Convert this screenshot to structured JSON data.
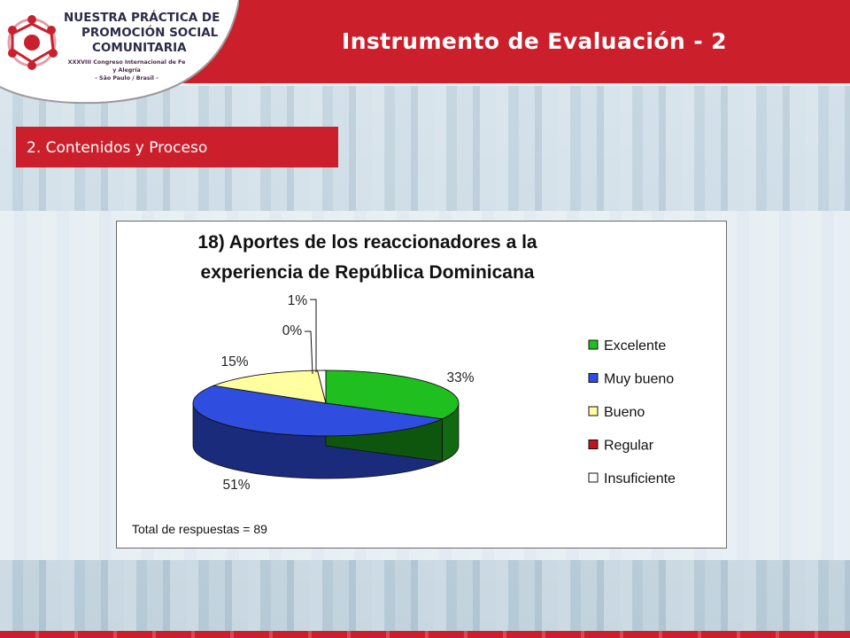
{
  "header": {
    "title": "Instrumento de Evaluación - 2",
    "logo": {
      "line1": "NUESTRA PRÁCTICA DE",
      "line2": "PROMOCIÓN SOCIAL",
      "line3": "COMUNITARIA",
      "subtitle_line1": "XXXVIII Congreso Internacional de Fe y Alegría",
      "subtitle_line2": "- São Paulo / Brasil -"
    }
  },
  "section": {
    "label": "2. Contenidos y Proceso"
  },
  "colors": {
    "brand_red": "#cc1f2c",
    "excelente": "#1fbf1f",
    "muy_bueno": "#2f4ee0",
    "bueno": "#ffffa0",
    "regular": "#c0141e",
    "insuficiente": "#ffffff"
  },
  "chart_data": {
    "type": "pie",
    "title_lines": [
      "18) Aportes de los reaccionadores a la",
      "experiencia de República Dominicana"
    ],
    "categories": [
      "Excelente",
      "Muy bueno",
      "Bueno",
      "Regular",
      "Insuficiente"
    ],
    "values": [
      33,
      51,
      15,
      0,
      1
    ],
    "labels": [
      "33%",
      "51%",
      "15%",
      "0%",
      "1%"
    ],
    "legend_position": "right",
    "three_d": true,
    "footnote": "Total de respuestas = 89"
  }
}
